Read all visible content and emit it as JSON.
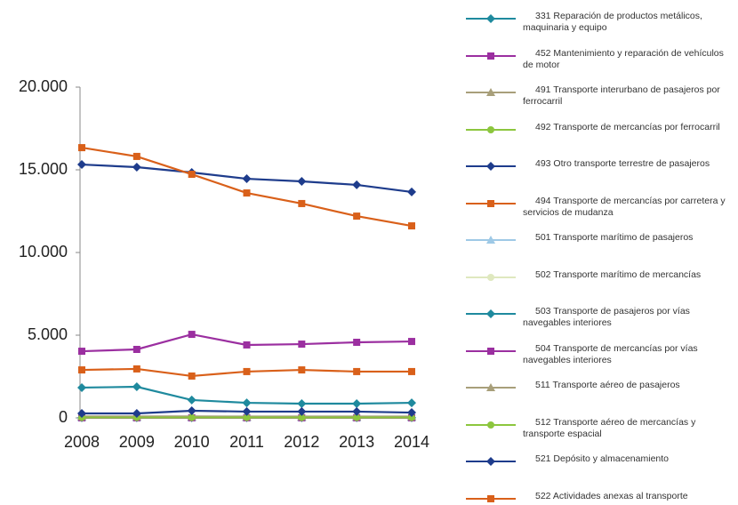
{
  "chart_data": {
    "type": "line",
    "categories": [
      "2008",
      "2009",
      "2010",
      "2011",
      "2012",
      "2013",
      "2014"
    ],
    "ylim": [
      0,
      20000
    ],
    "yticks": [
      0,
      {
        "value": 5000,
        "label": "5.000"
      },
      {
        "value": 10000,
        "label": "10.000"
      },
      {
        "value": 15000,
        "label": "15.000"
      },
      {
        "value": 20000,
        "label": "20.000"
      }
    ],
    "legend": "right",
    "series": [
      {
        "name": "331 Reparación de productos metálicos, maquinaria y equipo",
        "color": "#1f8a9e",
        "marker": "diamond",
        "values": [
          1830,
          1880,
          1080,
          910,
          860,
          860,
          910
        ]
      },
      {
        "name": "452 Mantenimiento y reparación de vehículos de motor",
        "color": "#9b2fa0",
        "marker": "square",
        "values": [
          4030,
          4140,
          5050,
          4410,
          4460,
          4570,
          4620
        ]
      },
      {
        "name": "491 Transporte interurbano de pasajeros por ferrocarril",
        "color": "#a89f7a",
        "marker": "triangle",
        "values": [
          60,
          60,
          50,
          50,
          50,
          50,
          50
        ]
      },
      {
        "name": "492 Transporte de mercancías por ferrocarril",
        "color": "#8cc63e",
        "marker": "circle",
        "values": [
          30,
          30,
          30,
          20,
          20,
          20,
          20
        ]
      },
      {
        "name": "493 Otro transporte terrestre de pasajeros",
        "color": "#1e3c8c",
        "marker": "diamond",
        "values": [
          15320,
          15160,
          14840,
          14460,
          14300,
          14090,
          13660
        ]
      },
      {
        "name": "494 Transporte de mercancías por carretera y servicios de mudanza",
        "color": "#d9601a",
        "marker": "square",
        "values": [
          16340,
          15810,
          14730,
          13600,
          12960,
          12200,
          11610
        ]
      },
      {
        "name": "501 Transporte marítimo de pasajeros",
        "color": "#9ec9e6",
        "marker": "triangle",
        "values": [
          10,
          10,
          10,
          10,
          10,
          10,
          10
        ]
      },
      {
        "name": "502 Transporte marítimo de mercancías",
        "color": "#dfe8bf",
        "marker": "circle",
        "values": [
          5,
          5,
          5,
          5,
          5,
          5,
          5
        ]
      },
      {
        "name": "503 Transporte de pasajeros por vías navegables interiores",
        "color": "#1f8a9e",
        "marker": "diamond",
        "values": [
          10,
          10,
          10,
          10,
          10,
          10,
          10
        ]
      },
      {
        "name": "504 Transporte de mercancías por vías navegables interiores",
        "color": "#9b2fa0",
        "marker": "square",
        "values": [
          5,
          5,
          5,
          5,
          5,
          5,
          5
        ]
      },
      {
        "name": "511 Transporte aéreo de pasajeros",
        "color": "#a89f7a",
        "marker": "triangle",
        "values": [
          90,
          90,
          90,
          80,
          80,
          80,
          80
        ]
      },
      {
        "name": "512 Transporte aéreo de mercancías y transporte espacial",
        "color": "#8cc63e",
        "marker": "circle",
        "values": [
          20,
          20,
          20,
          20,
          20,
          20,
          20
        ]
      },
      {
        "name": "521 Depósito y almacenamiento",
        "color": "#1e3c8c",
        "marker": "diamond",
        "values": [
          270,
          270,
          430,
          380,
          380,
          380,
          320
        ]
      },
      {
        "name": "522 Actividades anexas al transporte",
        "color": "#d9601a",
        "marker": "square",
        "values": [
          2900,
          2960,
          2530,
          2800,
          2900,
          2800,
          2800
        ]
      }
    ]
  }
}
